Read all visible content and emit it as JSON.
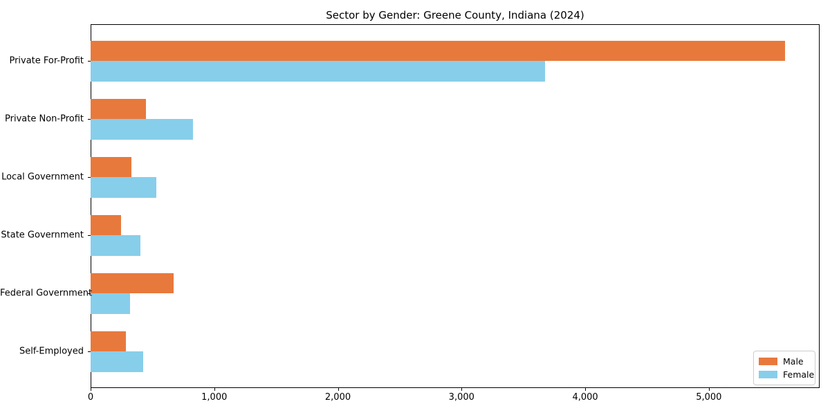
{
  "title": "Sector by Gender: Greene County, Indiana (2024)",
  "colors": {
    "male": "#E8793C",
    "female": "#87CEEB",
    "text": "#000000",
    "spine": "#000000",
    "legend_border": "#cccccc",
    "background": "#ffffff"
  },
  "chart_data": {
    "type": "bar",
    "orientation": "horizontal",
    "title": "Sector by Gender: Greene County, Indiana (2024)",
    "categories": [
      "Private For-Profit",
      "Private Non-Profit",
      "Local Government",
      "State Government",
      "Federal Government",
      "Self-Employed"
    ],
    "series": [
      {
        "name": "Male",
        "color": "#E8793C",
        "values": [
          5615,
          450,
          330,
          245,
          670,
          285
        ]
      },
      {
        "name": "Female",
        "color": "#87CEEB",
        "values": [
          3675,
          830,
          530,
          400,
          320,
          425
        ]
      }
    ],
    "xlabel": "",
    "ylabel": "",
    "xlim": [
      0,
      5896
    ],
    "xticks": [
      0,
      1000,
      2000,
      3000,
      4000,
      5000
    ],
    "xtick_labels": [
      "0",
      "1,000",
      "2,000",
      "3,000",
      "4,000",
      "5,000"
    ],
    "grid": false,
    "legend": {
      "position": "lower right",
      "entries": [
        "Male",
        "Female"
      ]
    }
  }
}
